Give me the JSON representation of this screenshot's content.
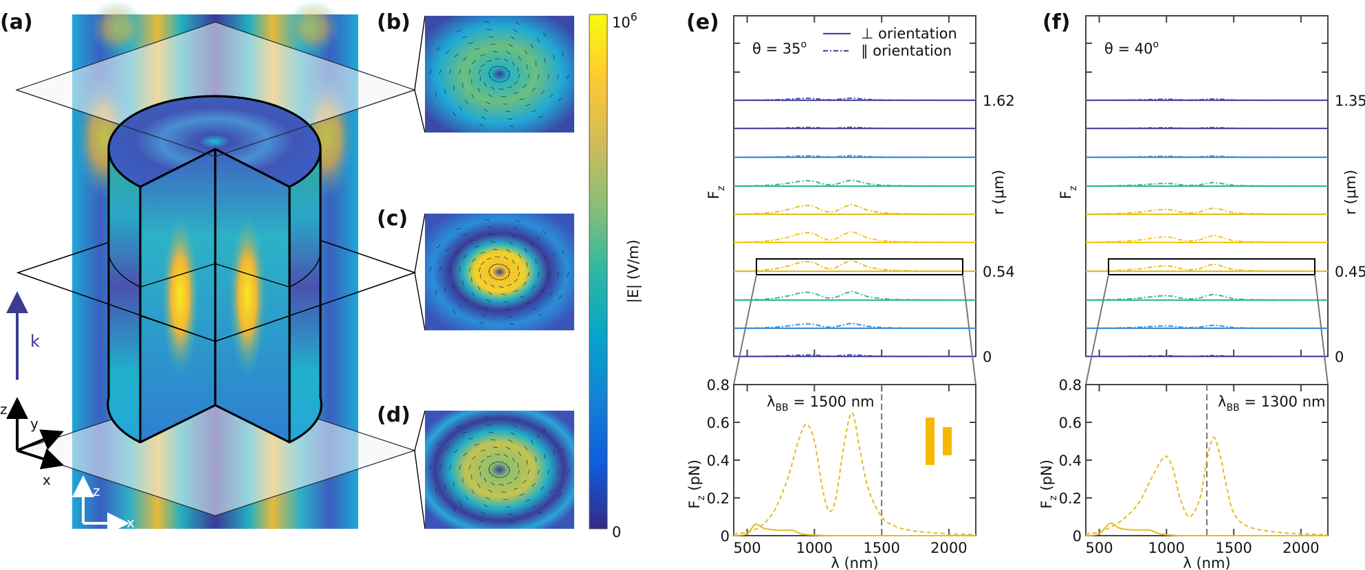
{
  "panel_labels": {
    "a": "(a)",
    "b": "(b)",
    "c": "(c)",
    "d": "(d)",
    "e": "(e)",
    "f": "(f)"
  },
  "panel_a": {
    "k_label": "k",
    "triad_labels": {
      "z": "z",
      "y": "y",
      "x": "x"
    },
    "inset_axes_labels": {
      "z": "z",
      "x": "x"
    },
    "k_arrow_color": "#3b3b8f"
  },
  "colorbar": {
    "label": "|E| (V/m)",
    "max_base": "10",
    "max_exp": "6",
    "min_label": "0",
    "colormap": [
      "#352a87",
      "#0f5cdd",
      "#1481d6",
      "#06a4ca",
      "#2eb7a4",
      "#87bf77",
      "#d1bb59",
      "#fec832",
      "#f9fb0e"
    ]
  },
  "chart_data": [
    {
      "panel": "e",
      "type": "line",
      "upper": {
        "annotation_theta": "θ = 35",
        "degree": "o",
        "ylabel_main": "F",
        "ylabel_sub": "z",
        "right_label": "r (μm)",
        "right_tick_labels": [
          "1.62",
          "0.54",
          "0"
        ],
        "legend": [
          {
            "symbol": "⊥",
            "text": "orientation",
            "style": "solid"
          },
          {
            "symbol": "∥",
            "text": "orientation",
            "style": "dashdot"
          }
        ],
        "legend_color": "#4a4aaa",
        "rows_top_to_bottom": [
          {
            "color": "#4a4aaa",
            "relative_peak": 0.2
          },
          {
            "color": "#4a4aaa",
            "relative_peak": 0.1
          },
          {
            "color": "#3d8fdb",
            "relative_peak": 0.15
          },
          {
            "color": "#34b89a",
            "relative_peak": 0.55
          },
          {
            "color": "#e4bf22",
            "relative_peak": 0.9
          },
          {
            "color": "#f5c518",
            "relative_peak": 1.0
          },
          {
            "color": "#e4bf22",
            "relative_peak": 1.0
          },
          {
            "color": "#34b89a",
            "relative_peak": 0.8
          },
          {
            "color": "#3d8fdb",
            "relative_peak": 0.45
          },
          {
            "color": "#4a4aaa",
            "relative_peak": 0.15
          }
        ],
        "highlighted_row_label": "0.54"
      },
      "lower": {
        "xlabel_symbol": "λ",
        "xlabel_unit": "(nm)",
        "ylabel_main": "F",
        "ylabel_sub": "z",
        "ylabel_unit": "(pN)",
        "xlim": [
          400,
          2200
        ],
        "ylim": [
          0,
          0.8
        ],
        "xticks": [
          500,
          1000,
          1500,
          2000
        ],
        "yticks": [
          0,
          0.2,
          0.4,
          0.6,
          0.8
        ],
        "ytick_labels": [
          "0",
          "0.2",
          "0.4",
          "0.6",
          "0.8"
        ],
        "annotation": {
          "symbol": "λ",
          "sub": "BB",
          "text": " = 1500 nm"
        },
        "vline_x": 1500,
        "vline_color": "#777777",
        "series_color": "#e6bb1e",
        "marker_bars_color": "#f5b800",
        "series": [
          {
            "style": "dashed",
            "x": [
              400,
              500,
              600,
              700,
              800,
              880,
              940,
              1000,
              1060,
              1110,
              1160,
              1220,
              1280,
              1340,
              1400,
              1500,
              1600,
              1700,
              1800,
              2000,
              2200
            ],
            "y": [
              0.01,
              0.02,
              0.05,
              0.13,
              0.3,
              0.5,
              0.59,
              0.5,
              0.25,
              0.13,
              0.2,
              0.48,
              0.65,
              0.45,
              0.25,
              0.1,
              0.05,
              0.03,
              0.02,
              0.01,
              0.005
            ]
          },
          {
            "style": "solid",
            "x": [
              400,
              500,
              560,
              620,
              700,
              760,
              830,
              900,
              1000,
              1200,
              2200
            ],
            "y": [
              0,
              0.01,
              0.06,
              0.04,
              0.03,
              0.028,
              0.03,
              0.01,
              0.003,
              0,
              0
            ]
          }
        ]
      }
    },
    {
      "panel": "f",
      "type": "line",
      "upper": {
        "annotation_theta": "θ = 40",
        "degree": "o",
        "ylabel_main": "F",
        "ylabel_sub": "z",
        "right_label": "r (μm)",
        "right_tick_labels": [
          "1.35",
          "0.45",
          "0"
        ],
        "rows_top_to_bottom": [
          {
            "color": "#4a4aaa",
            "relative_peak": 0.15
          },
          {
            "color": "#4a4aaa",
            "relative_peak": 0.1
          },
          {
            "color": "#3d8fdb",
            "relative_peak": 0.15
          },
          {
            "color": "#34b89a",
            "relative_peak": 0.4
          },
          {
            "color": "#e4bf22",
            "relative_peak": 0.7
          },
          {
            "color": "#f5c518",
            "relative_peak": 0.8
          },
          {
            "color": "#e4bf22",
            "relative_peak": 0.8
          },
          {
            "color": "#34b89a",
            "relative_peak": 0.65
          },
          {
            "color": "#3d8fdb",
            "relative_peak": 0.35
          },
          {
            "color": "#4a4aaa",
            "relative_peak": 0.1
          }
        ],
        "highlighted_row_label": "0.45"
      },
      "lower": {
        "xlabel_symbol": "λ",
        "xlabel_unit": "(nm)",
        "ylabel_main": "F",
        "ylabel_sub": "z",
        "ylabel_unit": "(pN)",
        "xlim": [
          400,
          2200
        ],
        "ylim": [
          0,
          0.8
        ],
        "xticks": [
          500,
          1000,
          1500,
          2000
        ],
        "yticks": [
          0,
          0.2,
          0.4,
          0.6,
          0.8
        ],
        "ytick_labels": [
          "0",
          "0.2",
          "0.4",
          "0.6",
          "0.8"
        ],
        "annotation": {
          "symbol": "λ",
          "sub": "BB",
          "text": " = 1300 nm"
        },
        "vline_x": 1300,
        "vline_color": "#777777",
        "series_color": "#e6bb1e",
        "series": [
          {
            "style": "dashed",
            "x": [
              400,
              500,
              600,
              700,
              800,
              900,
              990,
              1050,
              1100,
              1170,
              1250,
              1300,
              1350,
              1400,
              1450,
              1500,
              1600,
              1800,
              2000,
              2200
            ],
            "y": [
              0.01,
              0.02,
              0.05,
              0.1,
              0.18,
              0.32,
              0.42,
              0.35,
              0.2,
              0.1,
              0.2,
              0.4,
              0.52,
              0.42,
              0.25,
              0.12,
              0.05,
              0.02,
              0.01,
              0.005
            ]
          },
          {
            "style": "solid",
            "x": [
              400,
              500,
              580,
              650,
              750,
              870,
              950,
              1050,
              1200,
              2200
            ],
            "y": [
              0,
              0.01,
              0.065,
              0.04,
              0.03,
              0.03,
              0.01,
              0.002,
              0,
              0
            ]
          }
        ]
      }
    }
  ]
}
